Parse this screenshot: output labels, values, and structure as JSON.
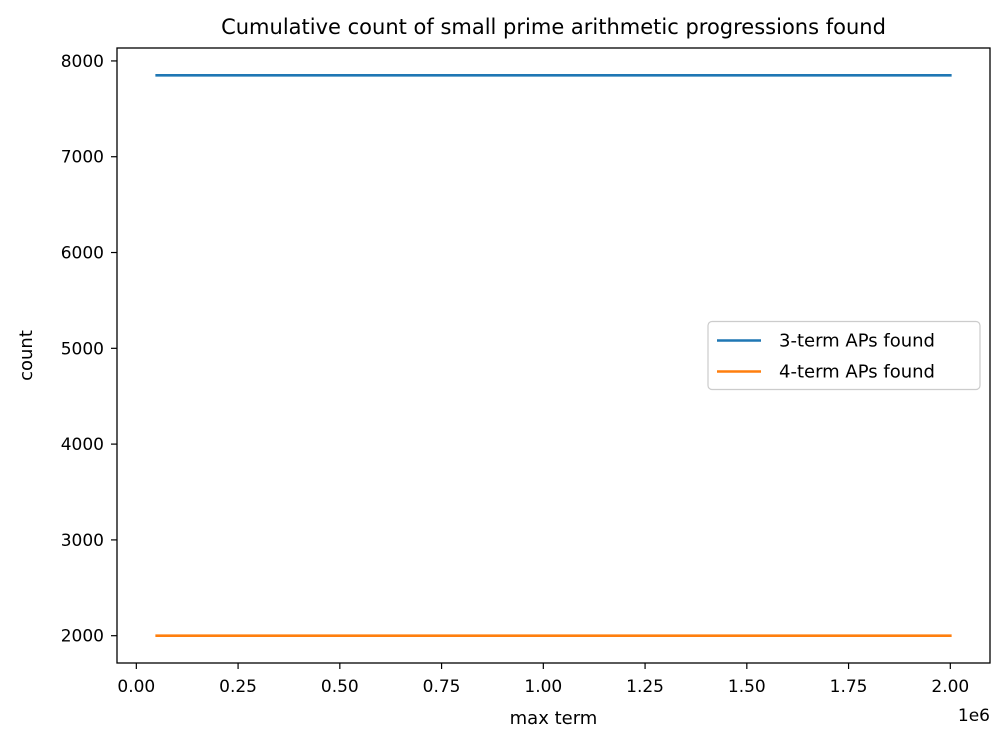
{
  "chart_data": {
    "type": "line",
    "title": "Cumulative count of small prime arithmetic progressions found",
    "xlabel": "max term",
    "ylabel": "count",
    "x_offset_label": "1e6",
    "xlim": [
      -0.0475,
      2.0975
    ],
    "ylim": [
      1715,
      8135
    ],
    "x_ticks": [
      0.0,
      0.25,
      0.5,
      0.75,
      1.0,
      1.25,
      1.5,
      1.75,
      2.0
    ],
    "x_tick_labels": [
      "0.00",
      "0.25",
      "0.50",
      "0.75",
      "1.00",
      "1.25",
      "1.50",
      "1.75",
      "2.00"
    ],
    "y_ticks": [
      2000,
      3000,
      4000,
      5000,
      6000,
      7000,
      8000
    ],
    "y_tick_labels": [
      "2000",
      "3000",
      "4000",
      "5000",
      "6000",
      "7000",
      "8000"
    ],
    "x": [
      0.05,
      0.1,
      0.2,
      0.3,
      0.4,
      0.5,
      0.6,
      0.7,
      0.8,
      0.9,
      1.0,
      1.1,
      1.2,
      1.3,
      1.4,
      1.5,
      1.6,
      1.7,
      1.8,
      1.9,
      2.0
    ],
    "series": [
      {
        "name": "3-term APs found",
        "color": "#1f77b4",
        "values": [
          7850,
          7850,
          7850,
          7850,
          7850,
          7850,
          7850,
          7850,
          7850,
          7850,
          7850,
          7850,
          7850,
          7850,
          7850,
          7850,
          7850,
          7850,
          7850,
          7850,
          7850
        ]
      },
      {
        "name": "4-term APs found",
        "color": "#ff7f0e",
        "values": [
          2000,
          2000,
          2000,
          2000,
          2000,
          2000,
          2000,
          2000,
          2000,
          2000,
          2000,
          2000,
          2000,
          2000,
          2000,
          2000,
          2000,
          2000,
          2000,
          2000,
          2000
        ]
      }
    ],
    "legend_position": "center-right",
    "grid": false
  }
}
